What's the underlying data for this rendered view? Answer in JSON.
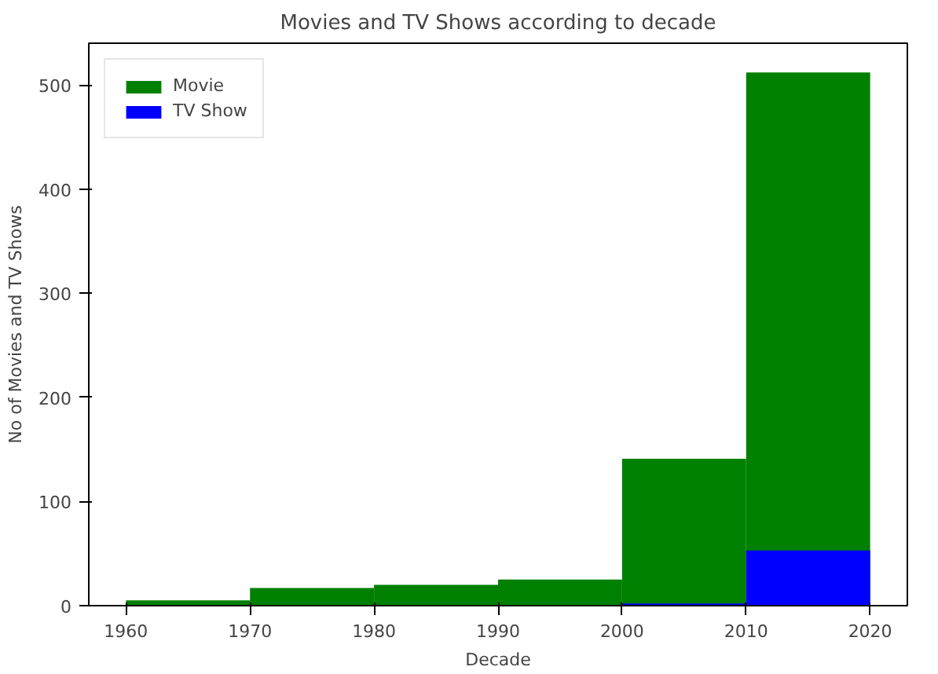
{
  "chart_data": {
    "type": "histogram",
    "title": "Movies and TV Shows according to decade",
    "xlabel": "Decade",
    "ylabel": "No of Movies and TV Shows",
    "bins": [
      1960,
      1970,
      1980,
      1990,
      2000,
      2010,
      2020
    ],
    "series": [
      {
        "name": "Movie",
        "color": "#008000",
        "values": [
          5,
          17,
          20,
          25,
          141,
          512
        ]
      },
      {
        "name": "TV Show",
        "color": "#0000ff",
        "values": [
          0,
          0,
          0,
          0,
          2,
          53
        ]
      }
    ],
    "xlim": [
      1957,
      2023
    ],
    "ylim": [
      0,
      540
    ],
    "xticks": [
      1960,
      1970,
      1980,
      1990,
      2000,
      2010,
      2020
    ],
    "yticks": [
      0,
      100,
      200,
      300,
      400,
      500
    ],
    "legend": "top left",
    "grid": false
  }
}
